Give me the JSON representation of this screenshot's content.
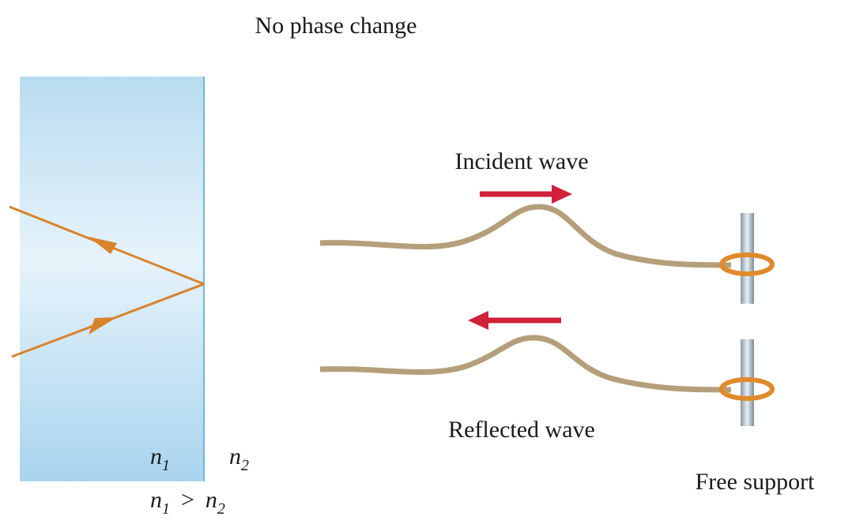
{
  "title": "No phase change",
  "rope_labels": {
    "incident": "Incident wave",
    "reflected": "Reflected wave",
    "support": "Free support"
  },
  "media": {
    "n1": {
      "base": "n",
      "sub": "1"
    },
    "n2": {
      "base": "n",
      "sub": "2"
    },
    "relation": {
      "left": {
        "base": "n",
        "sub": "1"
      },
      "op": ">",
      "right": {
        "base": "n",
        "sub": "2"
      }
    }
  }
}
